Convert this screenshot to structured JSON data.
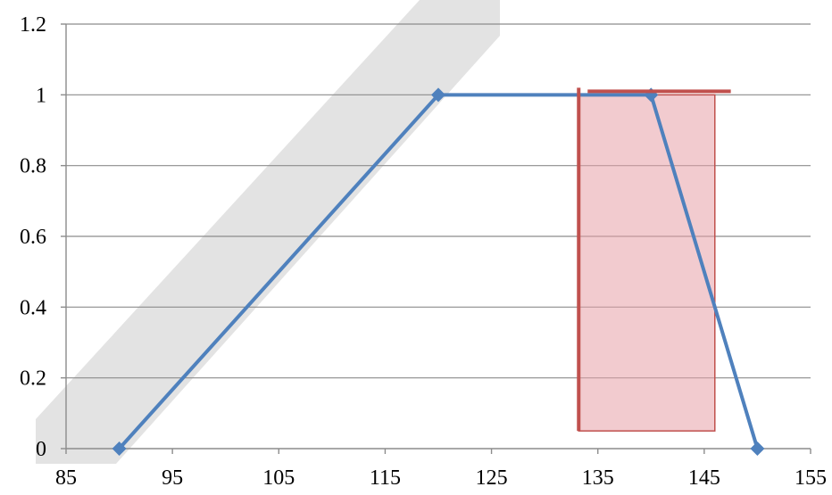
{
  "chart_data": {
    "type": "line",
    "title": "",
    "xlabel": "",
    "ylabel": "",
    "xlim": [
      85,
      155
    ],
    "ylim": [
      0,
      1.2
    ],
    "x_ticks": [
      85,
      95,
      105,
      115,
      125,
      135,
      145,
      155
    ],
    "x_tick_labels": [
      "85",
      "95",
      "105",
      "115",
      "125",
      "135",
      "145",
      "155"
    ],
    "y_ticks": [
      0,
      0.2,
      0.4,
      0.6,
      0.8,
      1,
      1.2
    ],
    "y_tick_labels": [
      "0",
      "0.2",
      "0.4",
      "0.6",
      "0.8",
      "1",
      "1.2"
    ],
    "grid": "horizontal",
    "legend": "none",
    "series": [
      {
        "color": "#4f81bd",
        "marker": "diamond",
        "points": [
          {
            "x": 90,
            "y": 0
          },
          {
            "x": 120,
            "y": 1
          },
          {
            "x": 140,
            "y": 1
          },
          {
            "x": 150,
            "y": 0
          }
        ]
      }
    ],
    "annotations": {
      "shaded_region": {
        "x_from": 133.2,
        "x_to": 146.0,
        "y_from": 0.05,
        "y_to": 1.0,
        "fill": "#e8a0a8",
        "stroke": "#c0504d"
      },
      "vertical_line": {
        "x": 133.2,
        "y_from": 0.05,
        "y_to": 1.02,
        "color": "#c0504d"
      },
      "horizontal_line": {
        "x_from": 133.2,
        "x_to": 147.5,
        "y": 1.01,
        "color": "#c0504d"
      }
    }
  }
}
